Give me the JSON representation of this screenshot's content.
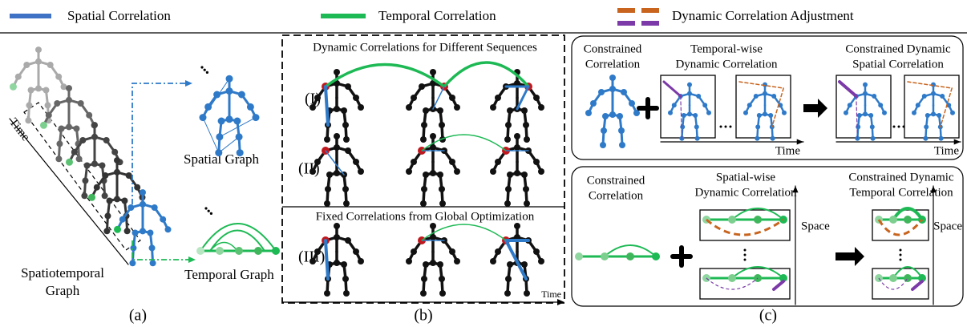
{
  "legend": {
    "spatial": "Spatial Correlation",
    "temporal": "Temporal Correlation",
    "adjustment": "Dynamic Correlation Adjustment"
  },
  "panel_a": {
    "time": "Time",
    "spatial_graph": "Spatial Graph",
    "spatiotemporal_graph": [
      "Spatiotemporal",
      "Graph"
    ],
    "temporal_graph": "Temporal Graph",
    "caption": "(a)"
  },
  "panel_b": {
    "dynamic_title": "Dynamic Correlations for Different Sequences",
    "row_labels": [
      "(I)",
      "(II)",
      "(III)"
    ],
    "fixed_title": "Fixed Correlations from Global Optimization",
    "time": "Time",
    "caption": "(b)"
  },
  "panel_c": {
    "top": {
      "constrained": [
        "Constrained",
        "Correlation"
      ],
      "dynamic": [
        "Temporal-wise",
        "Dynamic Correlation"
      ],
      "result": [
        "Constrained Dynamic",
        "Spatial Correlation"
      ],
      "time_labels": [
        "Time",
        "Time"
      ]
    },
    "bottom": {
      "constrained": [
        "Constrained",
        "Correlation"
      ],
      "dynamic": [
        "Spatial-wise",
        "Dynamic Correlation"
      ],
      "result": [
        "Constrained Dynamic",
        "Temporal Correlation"
      ],
      "space_labels": [
        "Space",
        "Space"
      ]
    },
    "caption": "(c)"
  }
}
